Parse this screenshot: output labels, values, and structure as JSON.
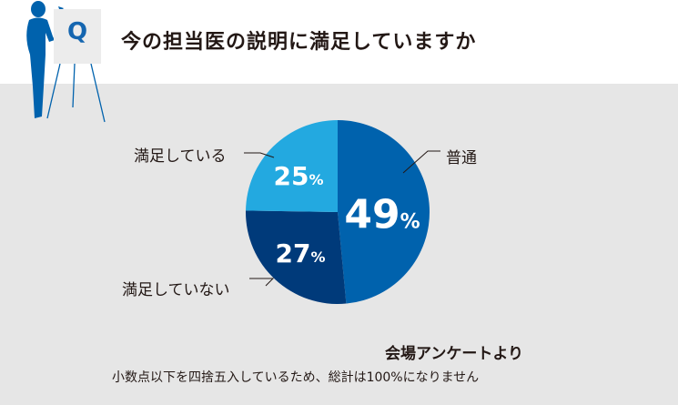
{
  "header": {
    "q_label": "Q",
    "title": "今の担当医の説明に満足していますか"
  },
  "chart_data": {
    "type": "pie",
    "title": "",
    "slices": [
      {
        "label": "普通",
        "value": 49,
        "display": "49",
        "color": "#0062ad"
      },
      {
        "label": "満足していない",
        "value": 27,
        "display": "27",
        "color": "#003a7a"
      },
      {
        "label": "満足している",
        "value": 25,
        "display": "25",
        "color": "#23a9e0"
      }
    ],
    "unit": "%",
    "start": "top",
    "direction": "clockwise"
  },
  "footer": {
    "source": "会場アンケートより",
    "note": "小数点以下を四捨五入しているため、総計は100%になりません"
  }
}
